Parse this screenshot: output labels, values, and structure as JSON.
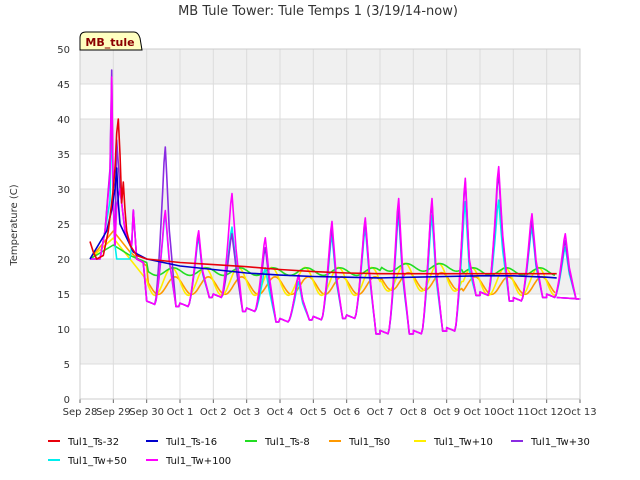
{
  "chart_data": {
    "type": "line",
    "title": "MB Tule Tower: Tule Temps 1 (3/19/14-now)",
    "badge": "MB_tule",
    "xlabel": "",
    "ylabel": "Temperature (C)",
    "ylim": [
      0,
      50
    ],
    "yticks": [
      0,
      5,
      10,
      15,
      20,
      25,
      30,
      35,
      40,
      45,
      50
    ],
    "xlim": [
      0,
      15
    ],
    "x_tick_labels": [
      "Sep 28",
      "Sep 29",
      "Sep 30",
      "Oct 1",
      "Oct 2",
      "Oct 3",
      "Oct 4",
      "Oct 5",
      "Oct 6",
      "Oct 7",
      "Oct 8",
      "Oct 9",
      "Oct 10",
      "Oct 11",
      "Oct 12",
      "Oct 13"
    ],
    "x_unit": "days since Sep 28",
    "series": [
      {
        "name": "Tul1_Ts-32",
        "color": "#e8000b",
        "points": [
          [
            0.3,
            22.5
          ],
          [
            0.4,
            21
          ],
          [
            0.5,
            20
          ],
          [
            0.7,
            20.5
          ],
          [
            0.85,
            24
          ],
          [
            0.95,
            28
          ],
          [
            1.0,
            30
          ],
          [
            1.05,
            33
          ],
          [
            1.1,
            38
          ],
          [
            1.15,
            40
          ],
          [
            1.2,
            35
          ],
          [
            1.25,
            28
          ],
          [
            1.3,
            31
          ],
          [
            1.35,
            27
          ],
          [
            1.4,
            24
          ],
          [
            1.5,
            22
          ],
          [
            1.7,
            20.5
          ],
          [
            2,
            20
          ],
          [
            3,
            19.5
          ],
          [
            4,
            19.2
          ],
          [
            5,
            18.9
          ],
          [
            6,
            18.5
          ],
          [
            7,
            18.2
          ],
          [
            8,
            18
          ],
          [
            9,
            17.9
          ],
          [
            10,
            17.9
          ],
          [
            11,
            17.9
          ],
          [
            12,
            17.9
          ],
          [
            13,
            17.9
          ],
          [
            14,
            17.9
          ],
          [
            14.3,
            17.9
          ]
        ]
      },
      {
        "name": "Tul1_Ts-16",
        "color": "#0000cc",
        "points": [
          [
            0.3,
            20
          ],
          [
            0.8,
            24
          ],
          [
            0.95,
            27
          ],
          [
            1.05,
            30
          ],
          [
            1.1,
            33
          ],
          [
            1.15,
            28
          ],
          [
            1.2,
            25
          ],
          [
            1.3,
            24
          ],
          [
            1.4,
            23
          ],
          [
            1.6,
            21
          ],
          [
            2,
            20
          ],
          [
            3,
            19
          ],
          [
            4,
            18.5
          ],
          [
            5,
            18
          ],
          [
            6,
            17.7
          ],
          [
            7,
            17.5
          ],
          [
            8,
            17.4
          ],
          [
            9,
            17.3
          ],
          [
            10,
            17.4
          ],
          [
            11,
            17.5
          ],
          [
            12,
            17.6
          ],
          [
            13,
            17.6
          ],
          [
            14,
            17.4
          ],
          [
            14.3,
            17.3
          ]
        ]
      }
    ],
    "legend": [
      {
        "name": "Tul1_Ts-32",
        "color": "#e8000b"
      },
      {
        "name": "Tul1_Ts-16",
        "color": "#0000cc"
      },
      {
        "name": "Tul1_Ts-8",
        "color": "#22dd22"
      },
      {
        "name": "Tul1_Ts0",
        "color": "#ff9900"
      },
      {
        "name": "Tul1_Tw+10",
        "color": "#ffee00"
      },
      {
        "name": "Tul1_Tw+30",
        "color": "#8a2be2"
      },
      {
        "name": "Tul1_Tw+50",
        "color": "#00eeee"
      },
      {
        "name": "Tul1_Tw+100",
        "color": "#ff00ff"
      }
    ],
    "generated_series": {
      "Tul1_Ts-8": {
        "base": 18.2,
        "amp": 0.6,
        "phase": 0.55,
        "early": [
          [
            0.3,
            20
          ],
          [
            1.0,
            22
          ],
          [
            1.5,
            20.5
          ],
          [
            2.0,
            19.5
          ]
        ]
      },
      "Tul1_Ts0": {
        "base": 16.2,
        "amp": 1.4,
        "phase": 0.6,
        "early": [
          [
            0.3,
            20
          ],
          [
            1.0,
            24
          ],
          [
            1.5,
            21
          ],
          [
            2.0,
            19
          ]
        ]
      },
      "Tul1_Tw+10": {
        "base": 16.8,
        "amp": 2.0,
        "phase": 0.5,
        "early": [
          [
            0.3,
            20
          ],
          [
            1.0,
            23
          ],
          [
            1.5,
            20
          ],
          [
            2.0,
            17
          ]
        ]
      },
      "Tul1_Tw+30": {
        "peaks": [
          47,
          37,
          24,
          24,
          22,
          18,
          25,
          26,
          28,
          29,
          32,
          33,
          26,
          23
        ]
      },
      "Tul1_Tw+50": {
        "peaks": [
          40.5,
          27,
          23.5,
          25,
          19,
          17,
          24,
          25,
          27,
          27,
          29,
          29,
          25,
          22
        ]
      },
      "Tul1_Tw+100": {
        "peaks": [
          46,
          27.5,
          24.5,
          30,
          23.5,
          18,
          26,
          26.5,
          29.5,
          29.5,
          32.5,
          34,
          27,
          24
        ]
      },
      "night_mins": [
        13.5,
        13.2,
        14.5,
        12.5,
        11.0,
        11.3,
        11.5,
        9.3,
        9.3,
        9.7,
        14.8,
        14.0,
        14.5,
        14.3
      ]
    }
  }
}
